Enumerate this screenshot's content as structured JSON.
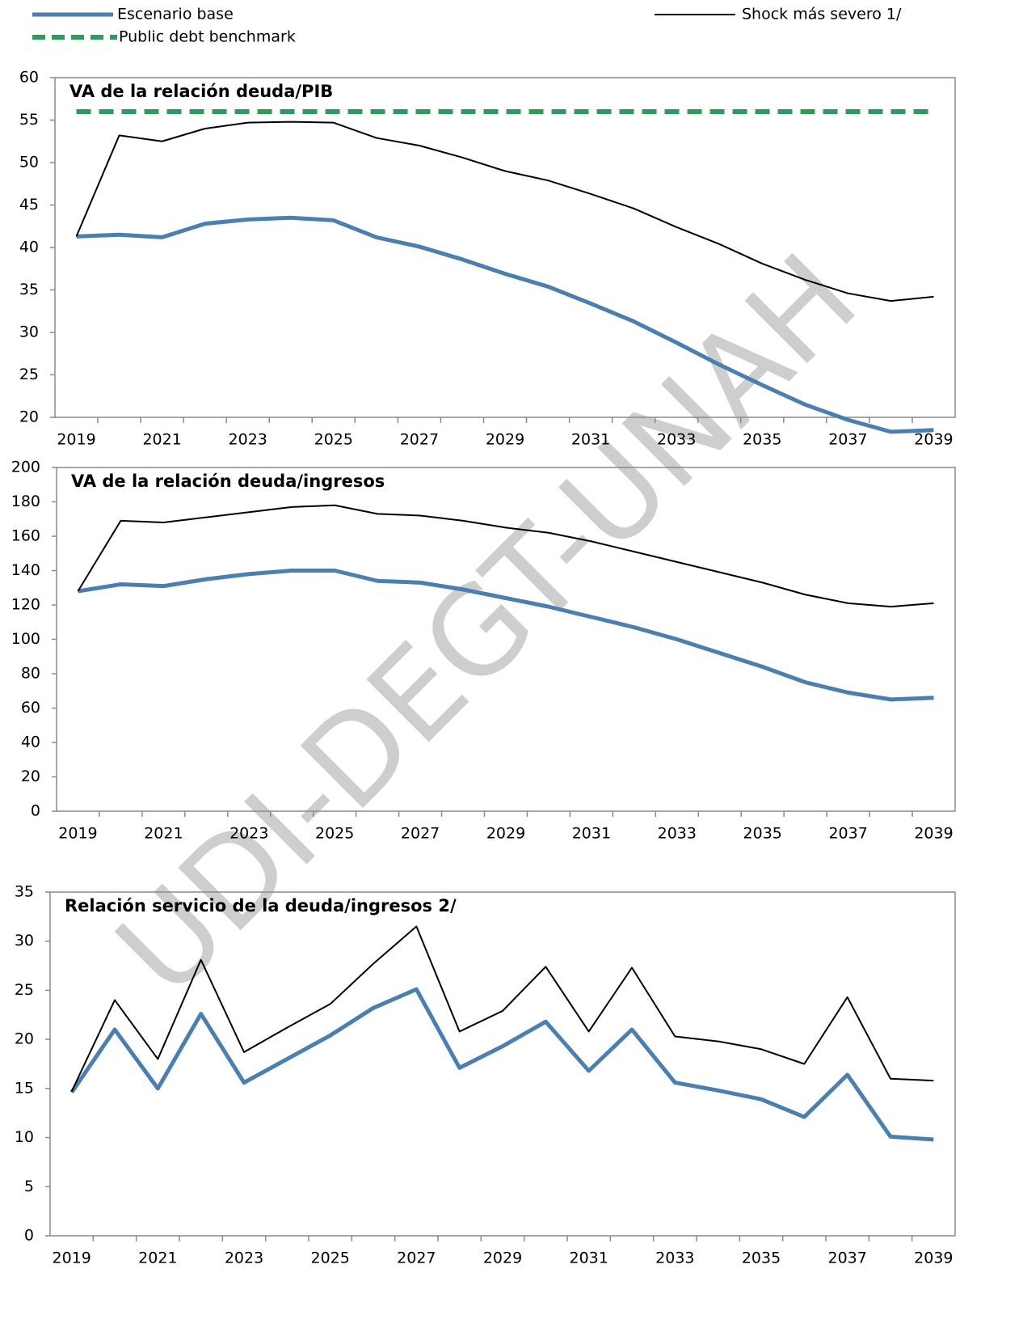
{
  "watermark": "UDI-DEGT-UNAH",
  "chart_data": [
    {
      "type": "line",
      "title": "VA de la relación deuda/PIB",
      "categories": [
        "2019",
        null,
        "2021",
        null,
        "2023",
        null,
        "2025",
        null,
        "2027",
        null,
        "2029",
        null,
        "2031",
        null,
        "2033",
        null,
        "2035",
        null,
        "2037",
        null,
        "2039"
      ],
      "ylim": [
        20,
        60
      ],
      "yticks": [
        20,
        25,
        30,
        35,
        40,
        45,
        50,
        55,
        60
      ],
      "series": [
        {
          "name": "Escenario base",
          "color": "#4a7fb0",
          "values": [
            41.3,
            41.5,
            41.2,
            42.8,
            43.3,
            43.5,
            43.2,
            41.2,
            40.1,
            38.6,
            36.9,
            35.4,
            33.4,
            31.3,
            28.8,
            26.2,
            23.8,
            21.5,
            19.7,
            18.3,
            18.5
          ]
        },
        {
          "name": "Public debt benchmark",
          "color": "#2e9a5c",
          "dashed": true,
          "values": [
            56,
            56,
            56,
            56,
            56,
            56,
            56,
            56,
            56,
            56,
            56,
            56,
            56,
            56,
            56,
            56,
            56,
            56,
            56,
            56,
            56
          ]
        },
        {
          "name": "Shock más severo  1/",
          "color": "#000000",
          "values": [
            41.3,
            53.2,
            52.5,
            54.0,
            54.7,
            54.8,
            54.7,
            52.9,
            52.0,
            50.6,
            49.0,
            47.9,
            46.3,
            44.6,
            42.4,
            40.4,
            38.1,
            36.2,
            34.6,
            33.7,
            34.2
          ]
        }
      ]
    },
    {
      "type": "line",
      "title": "VA de la relación deuda/ingresos",
      "categories": [
        "2019",
        null,
        "2021",
        null,
        "2023",
        null,
        "2025",
        null,
        "2027",
        null,
        "2029",
        null,
        "2031",
        null,
        "2033",
        null,
        "2035",
        null,
        "2037",
        null,
        "2039"
      ],
      "ylim": [
        0,
        200
      ],
      "yticks": [
        0,
        20,
        40,
        60,
        80,
        100,
        120,
        140,
        160,
        180,
        200
      ],
      "series": [
        {
          "color": "#4a7fb0",
          "values": [
            128,
            132,
            131,
            135,
            138,
            140,
            140,
            134,
            133,
            129,
            124,
            119,
            113,
            107,
            100,
            92,
            84,
            75,
            69,
            65,
            66
          ]
        },
        {
          "color": "#000000",
          "values": [
            128,
            169,
            168,
            171,
            174,
            177,
            178,
            173,
            172,
            169,
            165,
            162,
            157,
            151,
            145,
            139,
            133,
            126,
            121,
            119,
            121
          ]
        }
      ]
    },
    {
      "type": "line",
      "title": "Relación servicio de la deuda/ingresos 2/",
      "categories": [
        "2019",
        null,
        "2021",
        null,
        "2023",
        null,
        "2025",
        null,
        "2027",
        null,
        "2029",
        null,
        "2031",
        null,
        "2033",
        null,
        "2035",
        null,
        "2037",
        null,
        "2039"
      ],
      "ylim": [
        0,
        35
      ],
      "yticks": [
        0,
        5,
        10,
        15,
        20,
        25,
        30,
        35
      ],
      "series": [
        {
          "color": "#4a7fb0",
          "values": [
            14.6,
            21.0,
            15.0,
            22.6,
            15.6,
            18.0,
            20.4,
            23.2,
            25.1,
            17.1,
            19.3,
            21.8,
            16.8,
            21.0,
            15.6,
            14.8,
            13.9,
            12.1,
            16.4,
            10.1,
            9.8
          ]
        },
        {
          "color": "#000000",
          "values": [
            14.7,
            24.0,
            18.0,
            28.1,
            18.7,
            21.2,
            23.6,
            27.7,
            31.5,
            20.8,
            22.9,
            27.4,
            20.8,
            27.3,
            20.3,
            19.8,
            19.0,
            17.5,
            24.3,
            16.0,
            15.8
          ]
        }
      ]
    }
  ]
}
